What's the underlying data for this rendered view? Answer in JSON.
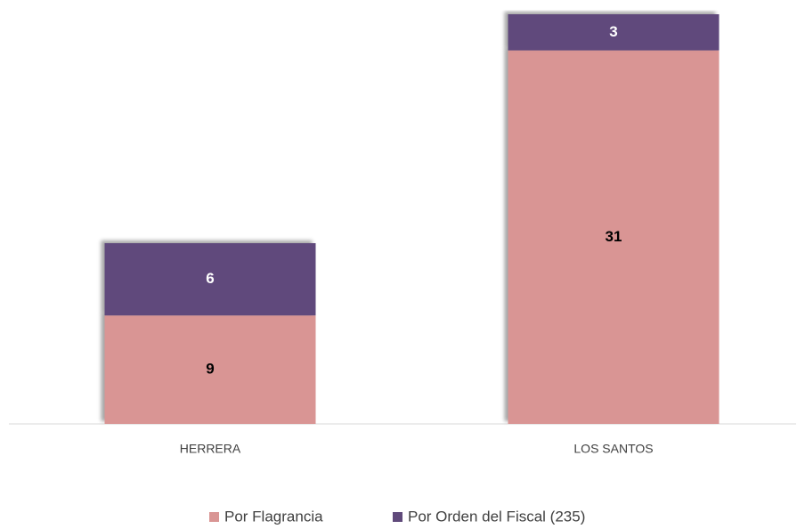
{
  "chart_data": {
    "type": "stacked_bar",
    "categories": [
      "HERRERA",
      "LOS SANTOS"
    ],
    "series": [
      {
        "name": "Por Flagrancia",
        "color": "#d99594",
        "values": [
          9,
          31
        ]
      },
      {
        "name": "Por Orden del Fiscal (235)",
        "color": "#604a7b",
        "values": [
          6,
          3
        ]
      }
    ]
  }
}
